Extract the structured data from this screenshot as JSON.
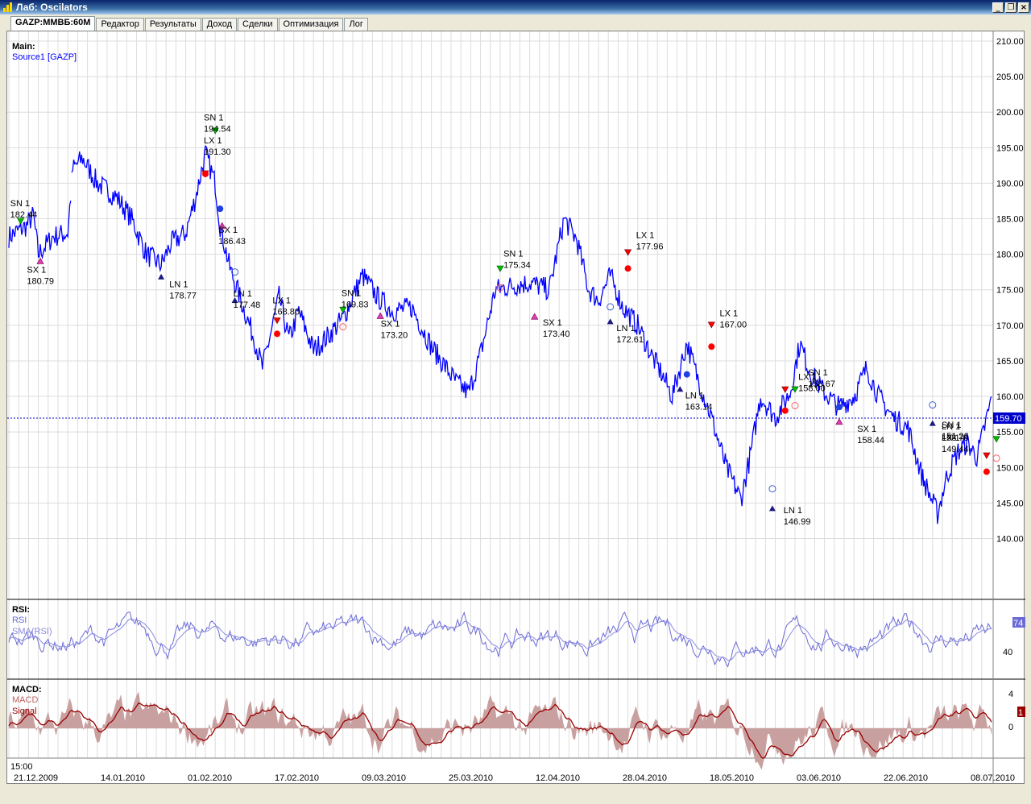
{
  "window": {
    "title": "Лаб: Oscilators"
  },
  "tabs": [
    {
      "label": "GAZP:ММВБ:60M",
      "active": true
    },
    {
      "label": "Редактор"
    },
    {
      "label": "Результаты"
    },
    {
      "label": "Доход"
    },
    {
      "label": "Сделки"
    },
    {
      "label": "Оптимизация"
    },
    {
      "label": "Лог"
    }
  ],
  "panels": {
    "main": {
      "title": "Main:",
      "source": "Source1 [GAZP]",
      "last_price": "159.70"
    },
    "rsi": {
      "title": "RSI:",
      "line1": "RSI",
      "line2": "SMA(RSI)",
      "last_value": "74"
    },
    "macd": {
      "title": "MACD:",
      "line1": "MACD",
      "line2": "Signal",
      "last_value": "1"
    }
  },
  "colors": {
    "price": "#0000ff",
    "rsi": "#6b6bd6",
    "macd_fill": "#c9a0a0",
    "signal": "#990000",
    "grid": "#d8d8d8"
  },
  "chart_data": {
    "type": "line",
    "time_label": "15:00",
    "x_ticks": [
      "21.12.2009",
      "14.01.2010",
      "01.02.2010",
      "17.02.2010",
      "09.03.2010",
      "25.03.2010",
      "12.04.2010",
      "28.04.2010",
      "18.05.2010",
      "03.06.2010",
      "22.06.2010",
      "08.07.2010"
    ],
    "y_ticks_main": [
      "210.00",
      "205.00",
      "200.00",
      "195.00",
      "190.00",
      "185.00",
      "180.00",
      "175.00",
      "170.00",
      "165.00",
      "160.00",
      "155.00",
      "150.00",
      "145.00",
      "140.00"
    ],
    "y_ticks_rsi": [
      "40"
    ],
    "y_ticks_macd": [
      "4",
      "0"
    ],
    "ylim_main": [
      136.2,
      210.0
    ],
    "price_path": [
      [
        0.0,
        182.5
      ],
      [
        0.018,
        184.0
      ],
      [
        0.025,
        185.5
      ],
      [
        0.03,
        180.0
      ],
      [
        0.045,
        182.5
      ],
      [
        0.06,
        183.0
      ],
      [
        0.065,
        192.0
      ],
      [
        0.075,
        193.5
      ],
      [
        0.09,
        190.0
      ],
      [
        0.11,
        188.0
      ],
      [
        0.125,
        185.0
      ],
      [
        0.14,
        180.0
      ],
      [
        0.155,
        178.5
      ],
      [
        0.165,
        181.5
      ],
      [
        0.18,
        183.0
      ],
      [
        0.19,
        188.0
      ],
      [
        0.2,
        194.2
      ],
      [
        0.21,
        190.0
      ],
      [
        0.215,
        184.0
      ],
      [
        0.225,
        178.0
      ],
      [
        0.235,
        174.0
      ],
      [
        0.25,
        168.0
      ],
      [
        0.258,
        164.0
      ],
      [
        0.265,
        168.0
      ],
      [
        0.275,
        174.0
      ],
      [
        0.285,
        168.0
      ],
      [
        0.295,
        172.0
      ],
      [
        0.31,
        166.5
      ],
      [
        0.325,
        168.5
      ],
      [
        0.34,
        171.0
      ],
      [
        0.36,
        177.0
      ],
      [
        0.375,
        174.0
      ],
      [
        0.39,
        172.0
      ],
      [
        0.41,
        172.5
      ],
      [
        0.43,
        167.0
      ],
      [
        0.455,
        162.0
      ],
      [
        0.468,
        160.5
      ],
      [
        0.48,
        166.0
      ],
      [
        0.495,
        175.0
      ],
      [
        0.51,
        175.5
      ],
      [
        0.53,
        176.0
      ],
      [
        0.55,
        175.0
      ],
      [
        0.565,
        185.0
      ],
      [
        0.578,
        182.0
      ],
      [
        0.59,
        175.0
      ],
      [
        0.6,
        173.5
      ],
      [
        0.612,
        177.0
      ],
      [
        0.625,
        172.5
      ],
      [
        0.64,
        170.0
      ],
      [
        0.655,
        165.5
      ],
      [
        0.665,
        163.0
      ],
      [
        0.675,
        160.0
      ],
      [
        0.69,
        167.5
      ],
      [
        0.7,
        163.0
      ],
      [
        0.715,
        157.0
      ],
      [
        0.73,
        150.0
      ],
      [
        0.745,
        145.5
      ],
      [
        0.755,
        152.0
      ],
      [
        0.765,
        160.0
      ],
      [
        0.78,
        157.0
      ],
      [
        0.795,
        160.5
      ],
      [
        0.805,
        167.5
      ],
      [
        0.815,
        163.5
      ],
      [
        0.83,
        160.5
      ],
      [
        0.845,
        158.5
      ],
      [
        0.86,
        160.0
      ],
      [
        0.873,
        164.0
      ],
      [
        0.885,
        160.0
      ],
      [
        0.9,
        157.0
      ],
      [
        0.915,
        155.5
      ],
      [
        0.93,
        148.5
      ],
      [
        0.945,
        143.5
      ],
      [
        0.955,
        149.0
      ],
      [
        0.965,
        152.0
      ],
      [
        0.975,
        153.5
      ],
      [
        0.985,
        151.5
      ],
      [
        0.99,
        154.0
      ],
      [
        1.0,
        159.7
      ]
    ],
    "trades": [
      {
        "label": "SN 1",
        "price": "182.44",
        "x": 0.003,
        "y": 182.44
      },
      {
        "label": "SX 1",
        "price": "180.79",
        "x": 0.02,
        "y": 180.79
      },
      {
        "label": "LN 1",
        "price": "178.77",
        "x": 0.165,
        "y": 178.77
      },
      {
        "label": "LX 1",
        "price": "191.30",
        "x": 0.2,
        "y": 191.3
      },
      {
        "label": "SN 1",
        "price": "194.54",
        "x": 0.2,
        "y": 194.54
      },
      {
        "label": "SX 1",
        "price": "186.43",
        "x": 0.215,
        "y": 186.43
      },
      {
        "label": "LN 1",
        "price": "177.48",
        "x": 0.23,
        "y": 177.48
      },
      {
        "label": "LX 1",
        "price": "168.80",
        "x": 0.27,
        "y": 168.8
      },
      {
        "label": "SN 1",
        "price": "169.83",
        "x": 0.34,
        "y": 169.83
      },
      {
        "label": "SX 1",
        "price": "173.20",
        "x": 0.38,
        "y": 173.2
      },
      {
        "label": "SN 1",
        "price": "175.34",
        "x": 0.505,
        "y": 175.34
      },
      {
        "label": "SX 1",
        "price": "173.40",
        "x": 0.545,
        "y": 173.4
      },
      {
        "label": "LN 1",
        "price": "172.61",
        "x": 0.62,
        "y": 172.61
      },
      {
        "label": "LX 1",
        "price": "177.96",
        "x": 0.64,
        "y": 177.96
      },
      {
        "label": "LN 1",
        "price": "163.14",
        "x": 0.69,
        "y": 163.14
      },
      {
        "label": "LX 1",
        "price": "167.00",
        "x": 0.725,
        "y": 167.0
      },
      {
        "label": "LN 1",
        "price": "146.99",
        "x": 0.79,
        "y": 146.99
      },
      {
        "label": "LX 1",
        "price": "158.00",
        "x": 0.805,
        "y": 158.0
      },
      {
        "label": "SN 1",
        "price": "158.67",
        "x": 0.815,
        "y": 158.67
      },
      {
        "label": "SX 1",
        "price": "158.44",
        "x": 0.865,
        "y": 158.44
      },
      {
        "label": "LN 1",
        "price": "158.78",
        "x": 0.955,
        "y": 158.78
      },
      {
        "label": "LX 1",
        "price": "149.44",
        "x": 1.015,
        "y": 149.44
      },
      {
        "label": "SN 1",
        "price": "151.26",
        "x": 1.025,
        "y": 151.26
      }
    ],
    "markers": [
      {
        "kind": "buy-arrow",
        "x": 0.012,
        "y": 184.5
      },
      {
        "kind": "sell-tri",
        "x": 0.032,
        "y": 179.0
      },
      {
        "kind": "short-arrow",
        "x": 0.155,
        "y": 176.8
      },
      {
        "kind": "sell-red",
        "x": 0.2,
        "y": 191.3
      },
      {
        "kind": "buy-arrow",
        "x": 0.21,
        "y": 197.2
      },
      {
        "kind": "red-dot",
        "x": 0.2,
        "y": 191.3
      },
      {
        "kind": "blue-dot",
        "x": 0.215,
        "y": 186.4
      },
      {
        "kind": "sell-tri",
        "x": 0.217,
        "y": 184.0
      },
      {
        "kind": "blue-ring",
        "x": 0.23,
        "y": 177.5
      },
      {
        "kind": "short-arrow",
        "x": 0.23,
        "y": 173.5
      },
      {
        "kind": "sell-red",
        "x": 0.273,
        "y": 170.6
      },
      {
        "kind": "red-dot",
        "x": 0.273,
        "y": 168.8
      },
      {
        "kind": "buy-arrow",
        "x": 0.34,
        "y": 172.0
      },
      {
        "kind": "red-ring",
        "x": 0.34,
        "y": 169.8
      },
      {
        "kind": "sell-tri",
        "x": 0.378,
        "y": 171.3
      },
      {
        "kind": "buy-arrow",
        "x": 0.5,
        "y": 177.8
      },
      {
        "kind": "red-ring",
        "x": 0.5,
        "y": 175.3
      },
      {
        "kind": "sell-tri",
        "x": 0.535,
        "y": 171.2
      },
      {
        "kind": "blue-ring",
        "x": 0.612,
        "y": 172.6
      },
      {
        "kind": "short-arrow",
        "x": 0.612,
        "y": 170.5
      },
      {
        "kind": "sell-red",
        "x": 0.63,
        "y": 180.2
      },
      {
        "kind": "red-dot",
        "x": 0.63,
        "y": 178.0
      },
      {
        "kind": "blue-dot",
        "x": 0.69,
        "y": 163.1
      },
      {
        "kind": "short-arrow",
        "x": 0.683,
        "y": 161.0
      },
      {
        "kind": "sell-red",
        "x": 0.715,
        "y": 170.0
      },
      {
        "kind": "red-dot",
        "x": 0.715,
        "y": 167.0
      },
      {
        "kind": "blue-ring",
        "x": 0.777,
        "y": 147.0
      },
      {
        "kind": "short-arrow",
        "x": 0.777,
        "y": 144.2
      },
      {
        "kind": "red-dot",
        "x": 0.79,
        "y": 158.0
      },
      {
        "kind": "sell-red",
        "x": 0.79,
        "y": 160.9
      },
      {
        "kind": "buy-arrow",
        "x": 0.8,
        "y": 160.8
      },
      {
        "kind": "red-ring",
        "x": 0.8,
        "y": 158.7
      },
      {
        "kind": "blue-dot",
        "x": 0.845,
        "y": 158.5
      },
      {
        "kind": "sell-tri",
        "x": 0.845,
        "y": 156.4
      },
      {
        "kind": "blue-ring",
        "x": 0.94,
        "y": 158.8
      },
      {
        "kind": "short-arrow",
        "x": 0.94,
        "y": 156.2
      },
      {
        "kind": "red-dot",
        "x": 0.995,
        "y": 149.4
      },
      {
        "kind": "sell-red",
        "x": 0.995,
        "y": 151.6
      },
      {
        "kind": "red-ring",
        "x": 1.005,
        "y": 151.3
      },
      {
        "kind": "buy-arrow",
        "x": 1.005,
        "y": 153.8
      }
    ]
  }
}
